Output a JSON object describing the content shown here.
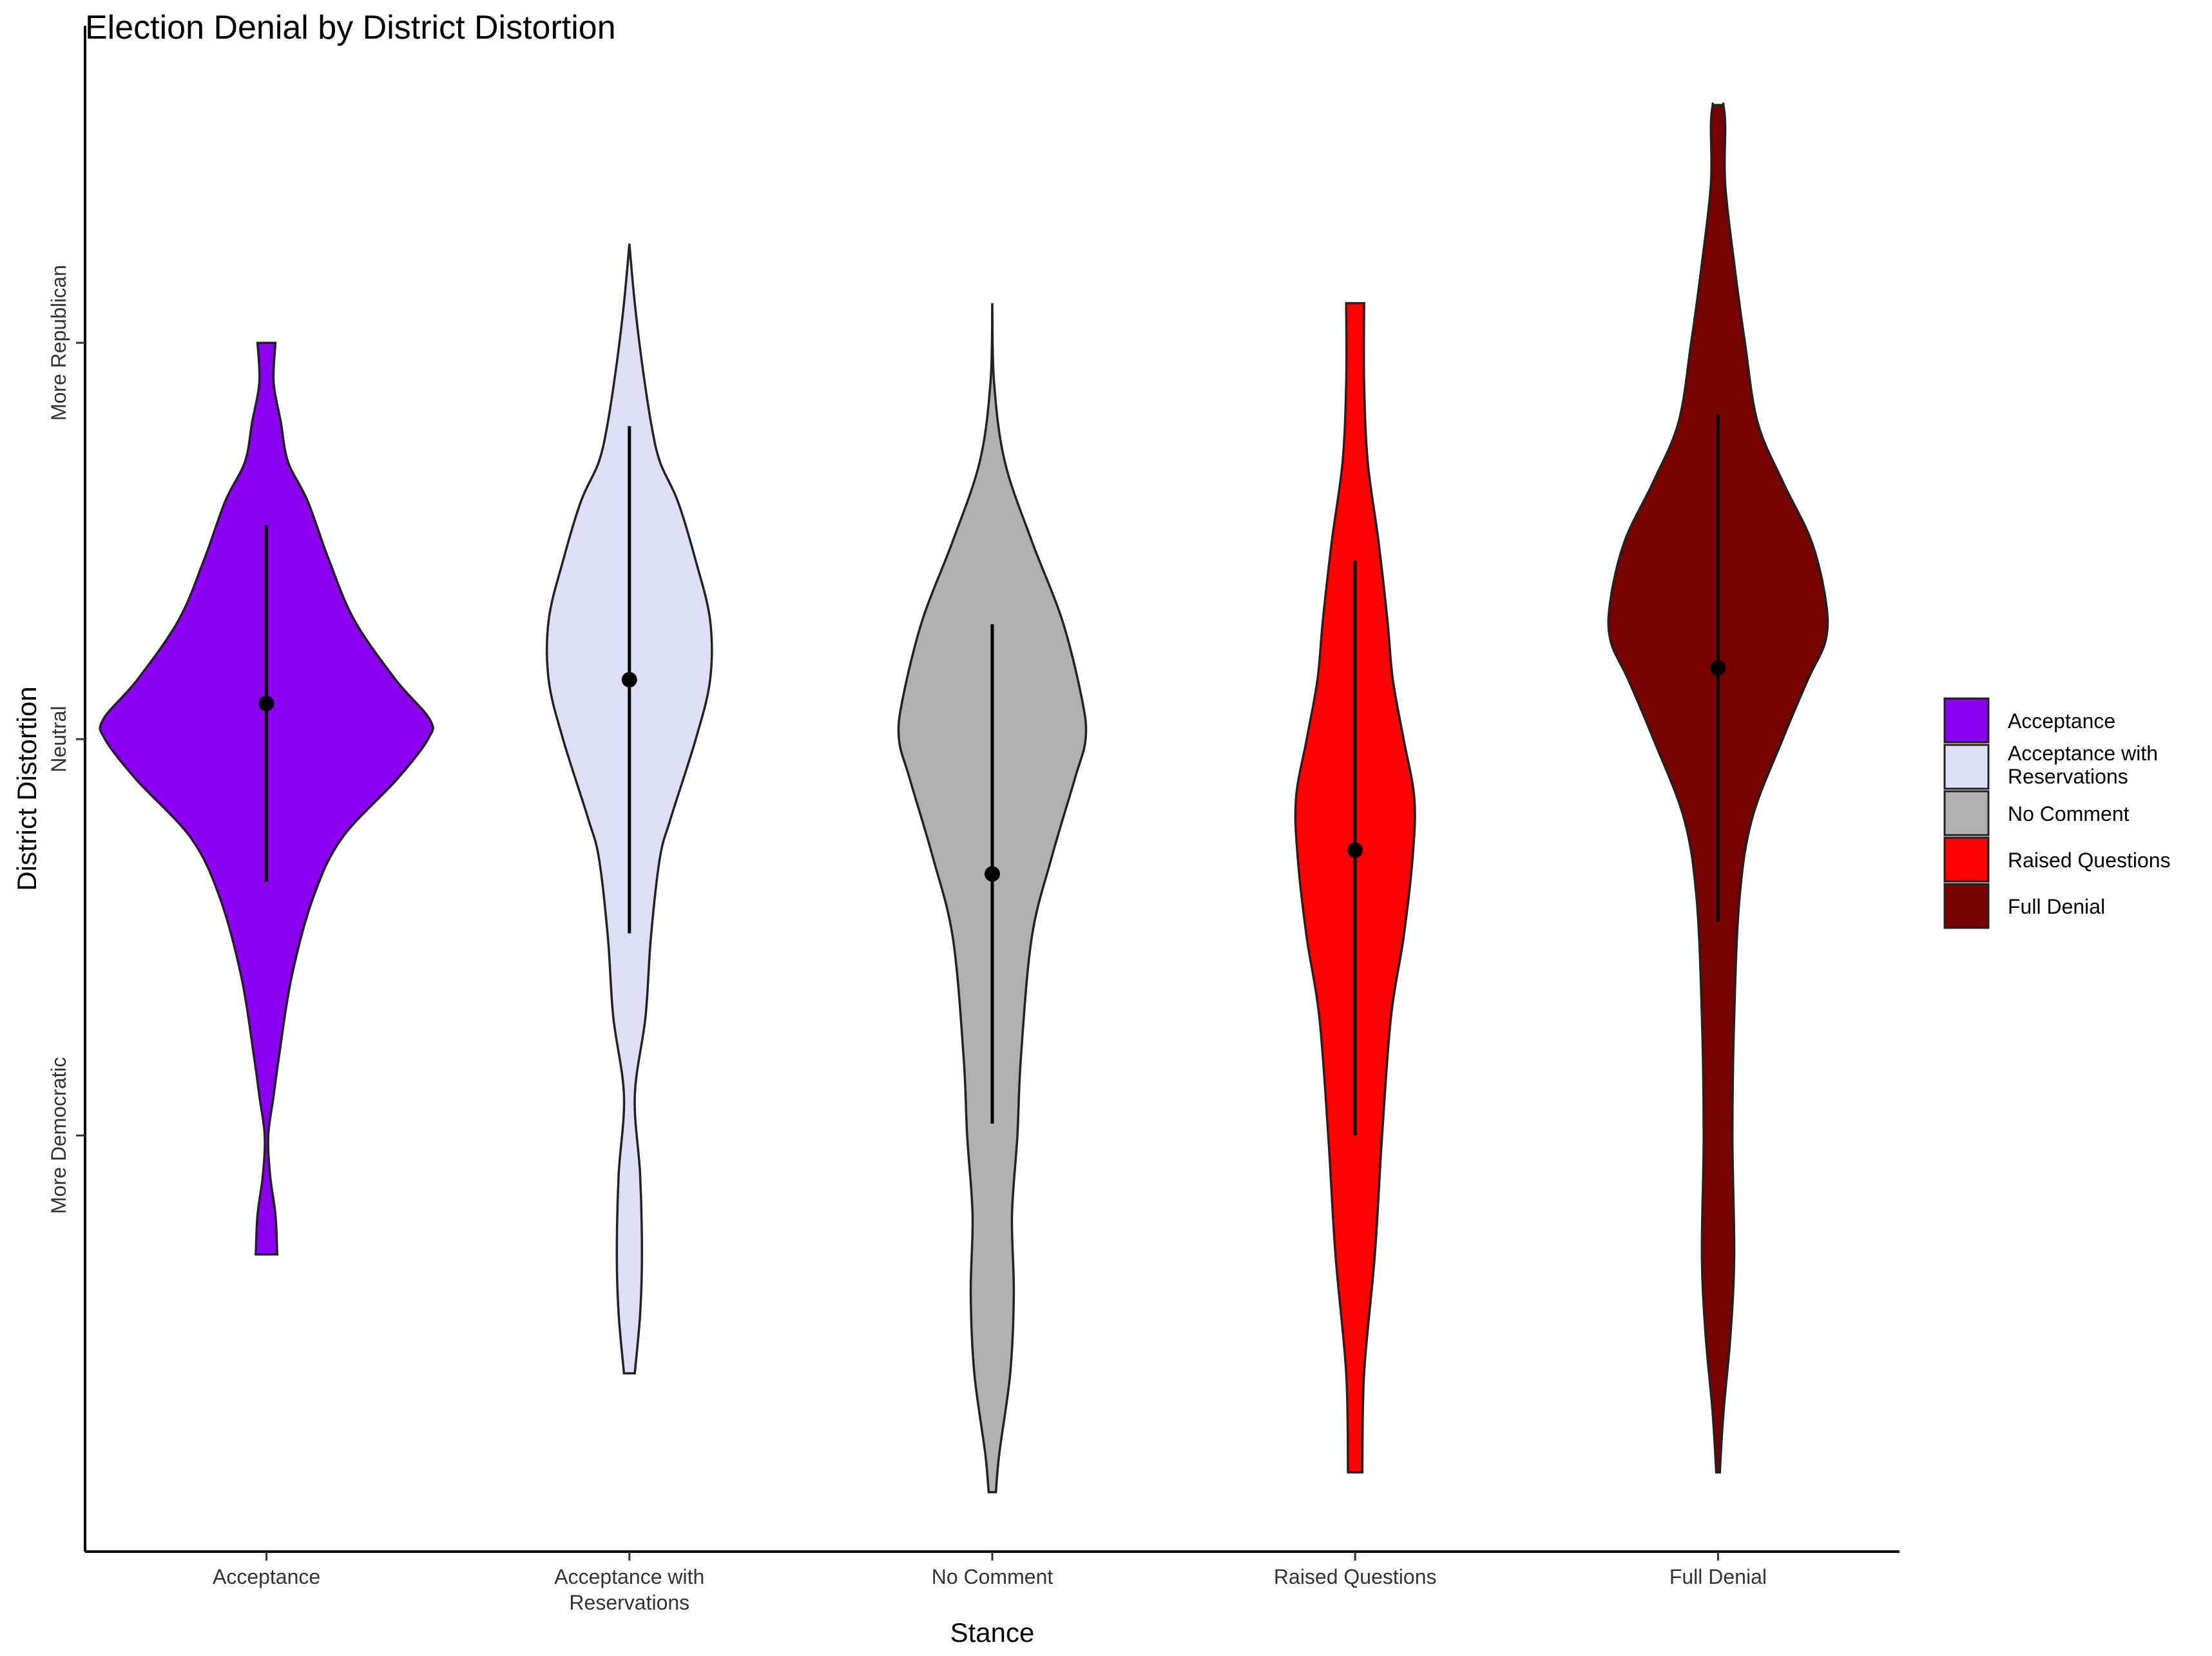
{
  "chart_data": {
    "type": "violin",
    "title": "Election Denial by District Distortion",
    "xlabel": "Stance",
    "ylabel": "District Distortion",
    "ylim": [
      -2.05,
      1.8
    ],
    "y_ticks": [
      {
        "value": -1,
        "label": "More Democratic"
      },
      {
        "value": 0,
        "label": "Neutral"
      },
      {
        "value": 1,
        "label": "More Republican"
      }
    ],
    "grid": false,
    "legend_position": "right",
    "categories": [
      {
        "name": "Acceptance",
        "lines": [
          "Acceptance"
        ]
      },
      {
        "name": "Acceptance with Reservations",
        "lines": [
          "Acceptance with",
          "Reservations"
        ]
      },
      {
        "name": "No Comment",
        "lines": [
          "No Comment"
        ]
      },
      {
        "name": "Raised Questions",
        "lines": [
          "Raised Questions"
        ]
      },
      {
        "name": "Full Denial",
        "lines": [
          "Full Denial"
        ]
      }
    ],
    "series": [
      {
        "name": "Acceptance",
        "color": "#8B00EE",
        "mean": 0.09,
        "range": [
          -0.36,
          0.54
        ],
        "density": [
          [
            -1.3,
            0.06
          ],
          [
            -1.2,
            0.05
          ],
          [
            -1.1,
            0.02
          ],
          [
            -1.0,
            0.01
          ],
          [
            -0.9,
            0.04
          ],
          [
            -0.8,
            0.07
          ],
          [
            -0.6,
            0.14
          ],
          [
            -0.4,
            0.26
          ],
          [
            -0.25,
            0.42
          ],
          [
            -0.1,
            0.73
          ],
          [
            0.0,
            0.9
          ],
          [
            0.05,
            0.91
          ],
          [
            0.15,
            0.72
          ],
          [
            0.3,
            0.49
          ],
          [
            0.45,
            0.35
          ],
          [
            0.6,
            0.23
          ],
          [
            0.7,
            0.12
          ],
          [
            0.8,
            0.08
          ],
          [
            0.9,
            0.04
          ],
          [
            1.0,
            0.05
          ]
        ]
      },
      {
        "name": "Acceptance with Reservations",
        "color": "#DEDEF7",
        "mean": 0.15,
        "range": [
          -0.49,
          0.79
        ],
        "density": [
          [
            -1.6,
            0.03
          ],
          [
            -1.45,
            0.06
          ],
          [
            -1.3,
            0.07
          ],
          [
            -1.1,
            0.06
          ],
          [
            -0.9,
            0.03
          ],
          [
            -0.7,
            0.09
          ],
          [
            -0.5,
            0.12
          ],
          [
            -0.3,
            0.17
          ],
          [
            -0.2,
            0.23
          ],
          [
            0.0,
            0.37
          ],
          [
            0.15,
            0.45
          ],
          [
            0.3,
            0.45
          ],
          [
            0.45,
            0.37
          ],
          [
            0.6,
            0.27
          ],
          [
            0.7,
            0.17
          ],
          [
            0.8,
            0.12
          ],
          [
            0.95,
            0.07
          ],
          [
            1.1,
            0.03
          ],
          [
            1.25,
            0.0
          ]
        ]
      },
      {
        "name": "No Comment",
        "color": "#B0B0B0",
        "mean": -0.34,
        "range": [
          -0.97,
          0.29
        ],
        "density": [
          [
            -1.9,
            0.02
          ],
          [
            -1.8,
            0.04
          ],
          [
            -1.6,
            0.1
          ],
          [
            -1.4,
            0.12
          ],
          [
            -1.2,
            0.11
          ],
          [
            -1.0,
            0.14
          ],
          [
            -0.8,
            0.16
          ],
          [
            -0.5,
            0.22
          ],
          [
            -0.3,
            0.33
          ],
          [
            -0.1,
            0.46
          ],
          [
            0.0,
            0.52
          ],
          [
            0.1,
            0.5
          ],
          [
            0.3,
            0.39
          ],
          [
            0.5,
            0.22
          ],
          [
            0.7,
            0.07
          ],
          [
            0.9,
            0.01
          ],
          [
            1.1,
            0.0
          ]
        ]
      },
      {
        "name": "Raised Questions",
        "color": "#FF0000",
        "mean": -0.28,
        "range": [
          -1.0,
          0.45
        ],
        "density": [
          [
            -1.85,
            0.04
          ],
          [
            -1.6,
            0.05
          ],
          [
            -1.3,
            0.11
          ],
          [
            -1.0,
            0.15
          ],
          [
            -0.7,
            0.2
          ],
          [
            -0.5,
            0.27
          ],
          [
            -0.3,
            0.32
          ],
          [
            -0.15,
            0.33
          ],
          [
            0.0,
            0.27
          ],
          [
            0.15,
            0.21
          ],
          [
            0.3,
            0.18
          ],
          [
            0.5,
            0.13
          ],
          [
            0.7,
            0.07
          ],
          [
            0.9,
            0.05
          ],
          [
            1.1,
            0.05
          ]
        ]
      },
      {
        "name": "Full Denial",
        "color": "#770000",
        "mean": 0.18,
        "range": [
          -0.46,
          0.82
        ],
        "density": [
          [
            -1.85,
            0.01
          ],
          [
            -1.7,
            0.03
          ],
          [
            -1.5,
            0.07
          ],
          [
            -1.3,
            0.09
          ],
          [
            -1.0,
            0.08
          ],
          [
            -0.7,
            0.09
          ],
          [
            -0.4,
            0.12
          ],
          [
            -0.2,
            0.19
          ],
          [
            0.0,
            0.36
          ],
          [
            0.15,
            0.5
          ],
          [
            0.25,
            0.6
          ],
          [
            0.35,
            0.6
          ],
          [
            0.5,
            0.52
          ],
          [
            0.65,
            0.36
          ],
          [
            0.8,
            0.22
          ],
          [
            1.0,
            0.15
          ],
          [
            1.2,
            0.09
          ],
          [
            1.4,
            0.04
          ],
          [
            1.6,
            0.03
          ],
          [
            1.6,
            0.03
          ],
          [
            1.55,
            0.04
          ]
        ]
      }
    ]
  }
}
